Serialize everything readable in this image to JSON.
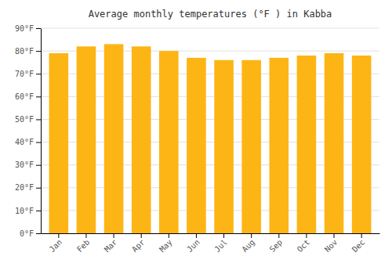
{
  "chart_data": {
    "type": "bar",
    "title": "Average monthly temperatures (°F ) in Kabba",
    "categories": [
      "Jan",
      "Feb",
      "Mar",
      "Apr",
      "May",
      "Jun",
      "Jul",
      "Aug",
      "Sep",
      "Oct",
      "Nov",
      "Dec"
    ],
    "values": [
      79,
      82,
      83,
      82,
      80,
      77,
      76,
      76,
      77,
      78,
      79,
      78
    ],
    "color": "#FDB515",
    "ylim": [
      0,
      90
    ],
    "yticks": [
      {
        "value": 0,
        "label": "0°F"
      },
      {
        "value": 10,
        "label": "10°F"
      },
      {
        "value": 20,
        "label": "20°F"
      },
      {
        "value": 30,
        "label": "30°F"
      },
      {
        "value": 40,
        "label": "40°F"
      },
      {
        "value": 50,
        "label": "50°F"
      },
      {
        "value": 60,
        "label": "60°F"
      },
      {
        "value": 70,
        "label": "70°F"
      },
      {
        "value": 80,
        "label": "80°F"
      },
      {
        "value": 90,
        "label": "90°F"
      }
    ],
    "grid": true
  }
}
